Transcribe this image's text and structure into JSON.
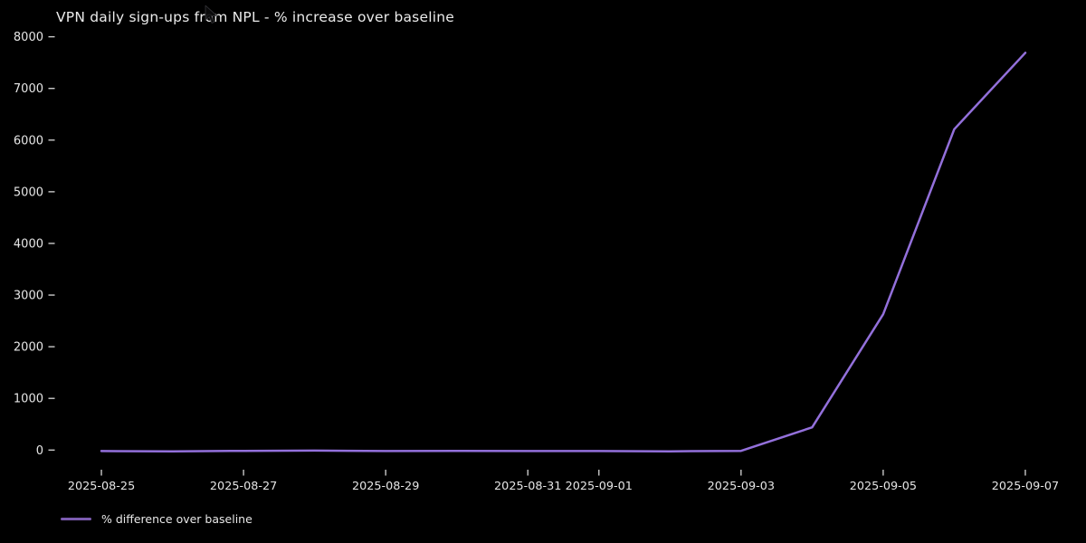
{
  "window": {
    "background": "#000000"
  },
  "chart_data": {
    "type": "line",
    "title": "VPN daily sign-ups from NPL - % increase over baseline",
    "x": [
      "2025-08-25",
      "2025-08-26",
      "2025-08-27",
      "2025-08-28",
      "2025-08-29",
      "2025-08-30",
      "2025-08-31",
      "2025-09-01",
      "2025-09-02",
      "2025-09-03",
      "2025-09-04",
      "2025-09-05",
      "2025-09-06",
      "2025-09-07"
    ],
    "series": [
      {
        "name": "% difference over baseline",
        "color": "#9370db",
        "values": [
          -20,
          -25,
          -15,
          -10,
          -20,
          -15,
          -20,
          -20,
          -25,
          -15,
          440,
          2630,
          6210,
          7690
        ]
      }
    ],
    "xlabel": "",
    "ylabel": "",
    "y_ticks": [
      0,
      1000,
      2000,
      3000,
      4000,
      5000,
      6000,
      7000,
      8000
    ],
    "x_ticks": [
      {
        "label": "2025-08-25",
        "day": 0
      },
      {
        "label": "2025-08-27",
        "day": 2
      },
      {
        "label": "2025-08-29",
        "day": 4
      },
      {
        "label": "2025-08-31",
        "day": 6
      },
      {
        "label": "2025-09-01",
        "day": 7
      },
      {
        "label": "2025-09-03",
        "day": 9
      },
      {
        "label": "2025-09-05",
        "day": 11
      },
      {
        "label": "2025-09-07",
        "day": 13
      }
    ],
    "ylim": [
      -380,
      8046
    ],
    "xlim_days": [
      -0.65,
      13.65
    ],
    "grid": false,
    "legend": {
      "position": "bottom-left",
      "entries": [
        "% difference over baseline"
      ]
    },
    "style": {
      "background": "#000000",
      "text_color": "#e6e6e6",
      "tick_color": "#c9c9c9",
      "line_width": 2.5,
      "tick_font_size": 12.8,
      "y_tick_font_size": 13
    }
  }
}
